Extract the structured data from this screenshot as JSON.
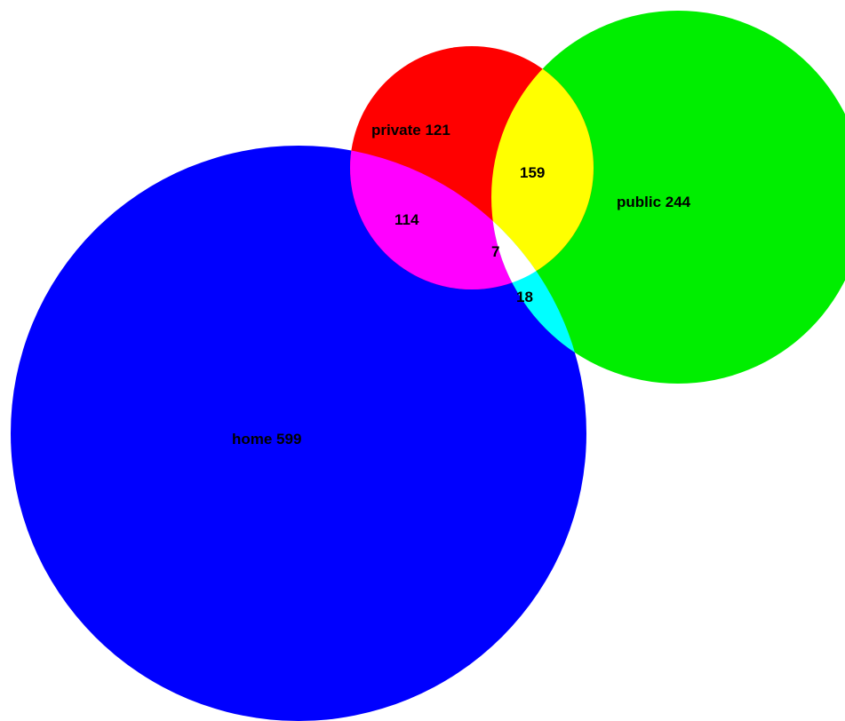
{
  "diagram": {
    "type": "venn",
    "sets": [
      {
        "key": "private",
        "label": "private 121",
        "color": "#ff0000"
      },
      {
        "key": "public",
        "label": "public 244",
        "color": "#00ee00"
      },
      {
        "key": "home",
        "label": "home 599",
        "color": "#0000ff"
      }
    ],
    "intersections": [
      {
        "key": "private-public",
        "label": "159",
        "color": "#ffff00"
      },
      {
        "key": "private-home",
        "label": "114",
        "color": "#ff00ff"
      },
      {
        "key": "public-home",
        "label": "18",
        "color": "#00ffff"
      },
      {
        "key": "private-public-home",
        "label": "7",
        "color": "#ffffff"
      }
    ]
  }
}
